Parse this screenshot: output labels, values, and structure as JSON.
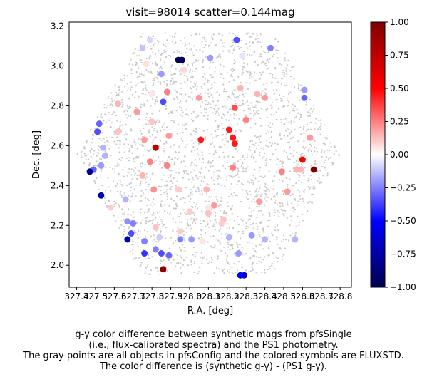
{
  "chart_data": {
    "type": "scatter",
    "title": "visit=98014  scatter=0.144mag",
    "xlabel": "R.A. [deg]",
    "ylabel": "Dec. [deg]",
    "xlim": [
      327.36,
      328.86
    ],
    "ylim": [
      1.89,
      3.22
    ],
    "xticks": [
      "327.4",
      "327.5",
      "327.6",
      "327.7",
      "327.8",
      "327.9",
      "328.0",
      "328.1",
      "328.2",
      "328.3",
      "328.4",
      "328.5",
      "328.6",
      "328.7",
      "328.8"
    ],
    "yticks": [
      "2.0",
      "2.2",
      "2.4",
      "2.6",
      "2.8",
      "3.0",
      "3.2"
    ],
    "grid": false,
    "background_series": {
      "description_visible": "gray points",
      "color": "#c8c8c8",
      "field_center": [
        328.1,
        2.56
      ],
      "field_radius_deg": 0.7
    },
    "colorbar": {
      "cmap": "seismic",
      "range": [
        -1.0,
        1.0
      ],
      "ticks": [
        "1.00",
        "0.75",
        "0.50",
        "0.25",
        "0.00",
        "−0.25",
        "−0.50",
        "−0.75",
        "−1.00"
      ],
      "tick_values": [
        1.0,
        0.75,
        0.5,
        0.25,
        0.0,
        -0.25,
        -0.5,
        -0.75,
        -1.0
      ]
    },
    "points": [
      [
        328.25,
        3.13,
        -0.35
      ],
      [
        328.43,
        3.09,
        -0.25
      ],
      [
        327.75,
        3.09,
        -0.12
      ],
      [
        327.79,
        3.13,
        -0.08
      ],
      [
        327.94,
        3.03,
        -1.0
      ],
      [
        327.96,
        3.03,
        -0.95
      ],
      [
        328.11,
        3.04,
        -0.2
      ],
      [
        328.28,
        3.05,
        -0.05
      ],
      [
        327.77,
        3.01,
        0.06
      ],
      [
        327.85,
        2.96,
        -0.2
      ],
      [
        327.97,
        2.98,
        0.08
      ],
      [
        327.72,
        2.77,
        0.2
      ],
      [
        327.8,
        2.86,
        0.05
      ],
      [
        327.88,
        2.87,
        0.25
      ],
      [
        328.05,
        2.84,
        0.2
      ],
      [
        328.27,
        2.89,
        0.15
      ],
      [
        328.36,
        2.86,
        0.15
      ],
      [
        328.4,
        2.84,
        0.2
      ],
      [
        328.61,
        2.88,
        -0.2
      ],
      [
        328.61,
        2.84,
        -0.3
      ],
      [
        327.86,
        2.82,
        -0.35
      ],
      [
        327.62,
        2.81,
        0.15
      ],
      [
        328.24,
        2.79,
        0.35
      ],
      [
        328.3,
        2.73,
        0.25
      ],
      [
        327.52,
        2.71,
        -0.3
      ],
      [
        327.51,
        2.67,
        -0.35
      ],
      [
        327.62,
        2.67,
        0.12
      ],
      [
        327.8,
        2.72,
        0.12
      ],
      [
        327.89,
        2.65,
        0.2
      ],
      [
        328.21,
        2.68,
        0.45
      ],
      [
        328.23,
        2.64,
        0.45
      ],
      [
        328.24,
        2.61,
        0.45
      ],
      [
        328.06,
        2.63,
        0.45
      ],
      [
        327.76,
        2.63,
        0.2
      ],
      [
        327.82,
        2.59,
        0.75
      ],
      [
        328.64,
        2.64,
        0.2
      ],
      [
        327.54,
        2.59,
        -0.15
      ],
      [
        327.55,
        2.55,
        -0.15
      ],
      [
        327.79,
        2.52,
        0.25
      ],
      [
        327.88,
        2.5,
        0.25
      ],
      [
        328.23,
        2.49,
        0.25
      ],
      [
        327.53,
        2.5,
        -0.2
      ],
      [
        327.49,
        2.48,
        -0.3
      ],
      [
        327.47,
        2.47,
        -0.8
      ],
      [
        327.75,
        2.45,
        0.15
      ],
      [
        328.49,
        2.47,
        0.25
      ],
      [
        328.57,
        2.48,
        0.15
      ],
      [
        328.59,
        2.48,
        0.15
      ],
      [
        328.6,
        2.53,
        0.5
      ],
      [
        328.66,
        2.48,
        1.0
      ],
      [
        327.66,
        2.33,
        -0.15
      ],
      [
        327.81,
        2.38,
        0.22
      ],
      [
        327.94,
        2.38,
        0.1
      ],
      [
        328.09,
        2.38,
        0.15
      ],
      [
        328.13,
        2.3,
        0.2
      ],
      [
        328.37,
        2.32,
        0.2
      ],
      [
        328.52,
        2.37,
        0.2
      ],
      [
        327.53,
        2.35,
        -0.7
      ],
      [
        327.58,
        2.29,
        0.1
      ],
      [
        328.1,
        2.29,
        0.05
      ],
      [
        328.1,
        2.26,
        0.12
      ],
      [
        328.0,
        2.27,
        0.1
      ],
      [
        328.18,
        2.23,
        0.12
      ],
      [
        328.17,
        2.21,
        0.1
      ],
      [
        327.67,
        2.22,
        -0.22
      ],
      [
        327.7,
        2.21,
        -0.25
      ],
      [
        327.82,
        2.19,
        0.12
      ],
      [
        327.95,
        2.17,
        0.1
      ],
      [
        327.69,
        2.16,
        -0.35
      ],
      [
        327.67,
        2.13,
        -0.7
      ],
      [
        327.76,
        2.12,
        -0.25
      ],
      [
        327.84,
        2.14,
        -0.1
      ],
      [
        327.95,
        2.13,
        -0.25
      ],
      [
        328.01,
        2.13,
        -0.2
      ],
      [
        328.07,
        2.12,
        0.05
      ],
      [
        328.21,
        2.14,
        -0.15
      ],
      [
        328.33,
        2.15,
        -0.2
      ],
      [
        328.4,
        2.13,
        -0.15
      ],
      [
        328.56,
        2.13,
        -0.15
      ],
      [
        327.76,
        2.06,
        -0.4
      ],
      [
        327.82,
        2.08,
        -0.25
      ],
      [
        327.85,
        2.06,
        -0.35
      ],
      [
        327.89,
        2.05,
        -0.3
      ],
      [
        328.26,
        2.06,
        -0.2
      ],
      [
        327.86,
        1.98,
        0.95
      ],
      [
        328.27,
        1.95,
        -0.55
      ],
      [
        328.29,
        1.95,
        -0.6
      ]
    ]
  },
  "caption": {
    "lines": [
      "g-y color difference between synthetic mags from pfsSingle",
      "(i.e., flux-calibrated spectra) and the PS1 photometry.",
      "The gray points are all objects in pfsConfig and the colored symbols are FLUXSTD.",
      "The color difference is (synthetic g-y) - (PS1 g-y)."
    ]
  }
}
